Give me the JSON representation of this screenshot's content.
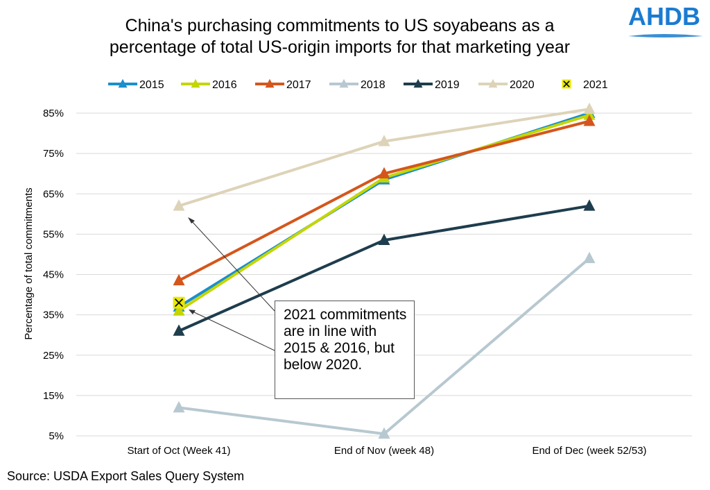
{
  "logo_text": "AHDB",
  "source": "Source: USDA Export Sales Query System",
  "callout": "2021 commitments are in line with 2015 & 2016, but below 2020.",
  "chart_data": {
    "type": "line",
    "title_lines": [
      "China's purchasing commitments to US soyabeans as a",
      "percentage of total US-origin imports for that marketing year"
    ],
    "ylabel": "Percentage of total commitments",
    "xlabel": "",
    "categories": [
      "Start of Oct (Week 41)",
      "End of Nov (week 48)",
      "End of Dec (week 52/53)"
    ],
    "ylim": [
      5,
      85
    ],
    "yticks": [
      5,
      15,
      25,
      35,
      45,
      55,
      65,
      75,
      85
    ],
    "ytick_labels": [
      "5%",
      "15%",
      "25%",
      "35%",
      "45%",
      "55%",
      "65%",
      "75%",
      "85%"
    ],
    "grid": true,
    "legend_position": "top",
    "series": [
      {
        "name": "2015",
        "color": "#1a8fcc",
        "marker": "triangle",
        "values": [
          37,
          68.5,
          85
        ]
      },
      {
        "name": "2016",
        "color": "#c4d600",
        "marker": "triangle",
        "values": [
          36,
          69,
          84.5
        ]
      },
      {
        "name": "2017",
        "color": "#d4561c",
        "marker": "triangle",
        "values": [
          43.5,
          70,
          83
        ]
      },
      {
        "name": "2018",
        "color": "#b7c8d0",
        "marker": "triangle",
        "values": [
          12,
          5.5,
          49
        ]
      },
      {
        "name": "2019",
        "color": "#1e3d4d",
        "marker": "triangle",
        "values": [
          31,
          53.5,
          62
        ]
      },
      {
        "name": "2020",
        "color": "#ddd3b8",
        "marker": "triangle",
        "values": [
          62,
          78,
          86
        ]
      },
      {
        "name": "2021",
        "color": "#e8e800",
        "marker": "x-square",
        "values": [
          38,
          null,
          null
        ]
      }
    ]
  }
}
